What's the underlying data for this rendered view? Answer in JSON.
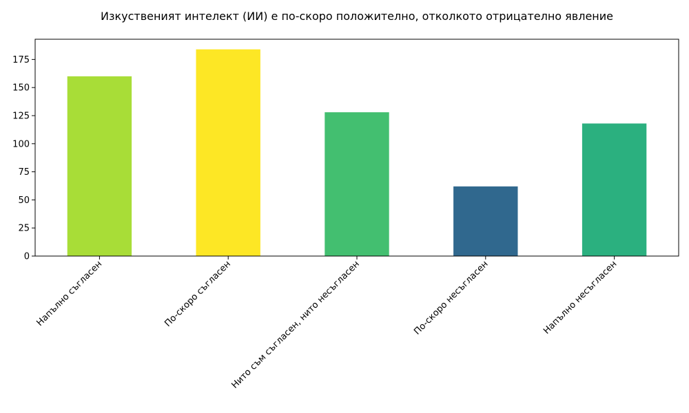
{
  "chart_data": {
    "type": "bar",
    "title": "Изкуственият интелект (ИИ) е по-скоро положително, отколкото отрицателно явление",
    "xlabel": "",
    "ylabel": "",
    "categories": [
      "Напълно съгласен",
      "По-скоро съгласен",
      "Нито съм съгласен, нито несъгласен",
      "По-скоро несъгласен",
      "Напълно несъгласен"
    ],
    "values": [
      160,
      184,
      128,
      62,
      118
    ],
    "colors": [
      "#a8dd37",
      "#fde725",
      "#43bf70",
      "#30688e",
      "#2bb07f"
    ],
    "ylim": [
      0,
      193
    ],
    "yticks": [
      0,
      25,
      50,
      75,
      100,
      125,
      150,
      175
    ],
    "grid": false,
    "legend": false
  }
}
